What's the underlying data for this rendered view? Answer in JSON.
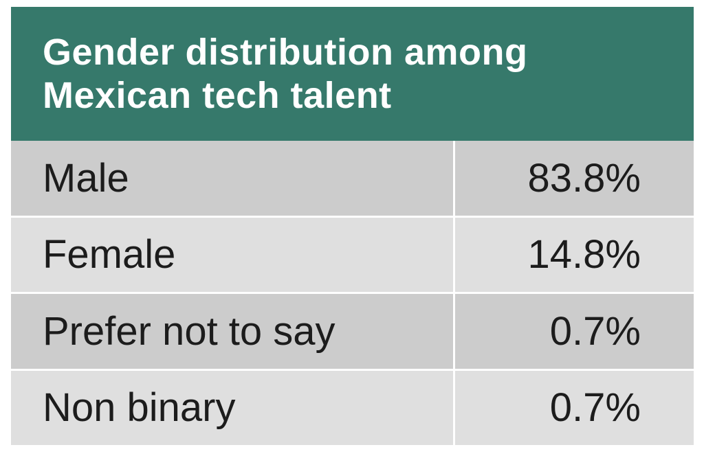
{
  "page": {
    "background": "#ffffff"
  },
  "header": {
    "title_lines": [
      "Gender distribution among",
      "Mexican tech talent"
    ],
    "title_full": "Gender distribution among Mexican tech talent",
    "background_color": "#36796b",
    "text_color": "#ffffff"
  },
  "table": {
    "rows": [
      {
        "label": "Male",
        "value": "83.8%"
      },
      {
        "label": "Female",
        "value": "14.8%"
      },
      {
        "label": "Prefer not to say",
        "value": "0.7%"
      },
      {
        "label": "Non binary",
        "value": "0.7%"
      }
    ],
    "row_color_dark": "#cccccc",
    "row_color_light": "#dfdfdf",
    "divider_color": "#ffffff",
    "text_color": "#1c1c1c"
  },
  "chart_data": {
    "type": "table",
    "title": "Gender distribution among Mexican tech talent",
    "categories": [
      "Male",
      "Female",
      "Prefer not to say",
      "Non binary"
    ],
    "values": [
      83.8,
      14.8,
      0.7,
      0.7
    ],
    "unit": "%",
    "layout": "two-column table, labels left-aligned, values right-aligned, teal title band, alternating gray row stripes"
  }
}
